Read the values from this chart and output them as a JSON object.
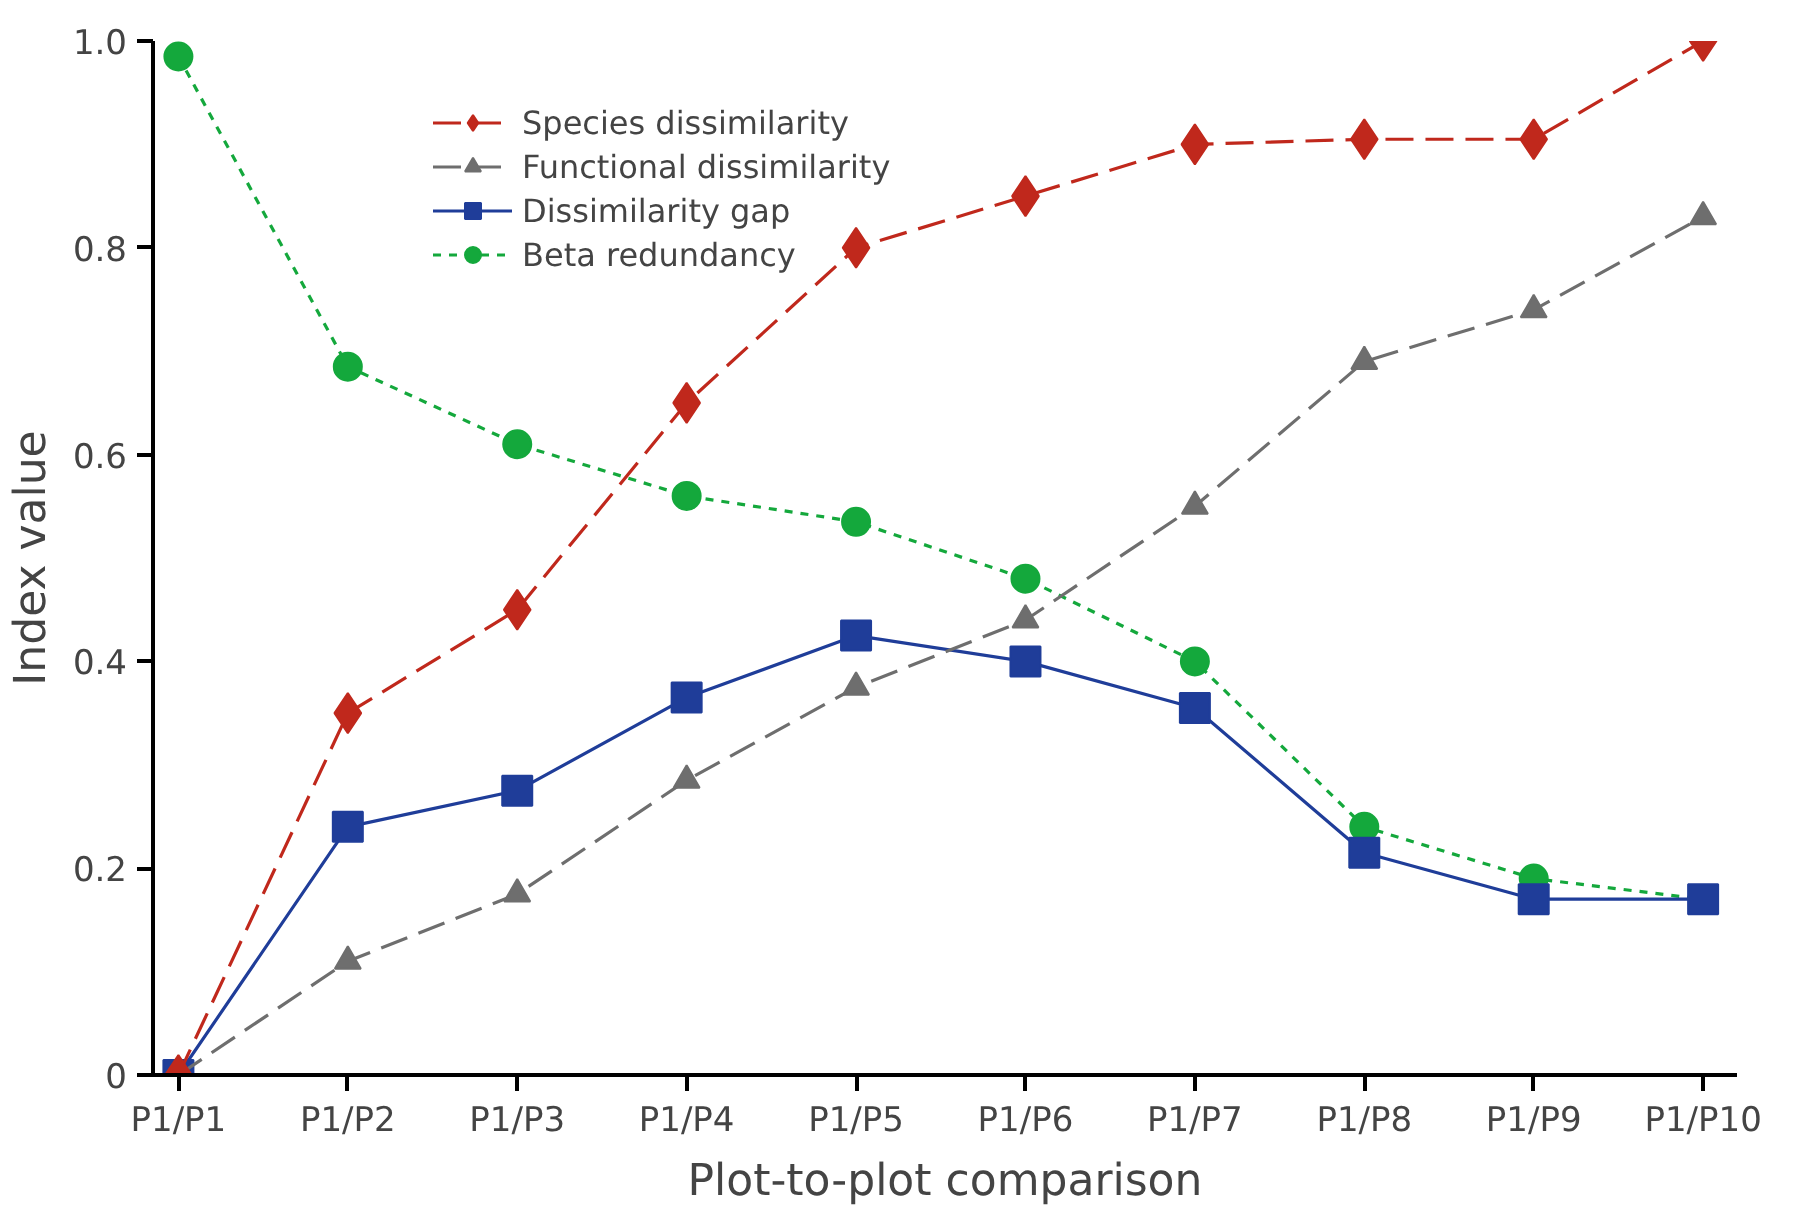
{
  "chart_data": {
    "type": "line",
    "xlabel": "Plot-to-plot comparison",
    "ylabel": "Index value",
    "categories": [
      "P1/P1",
      "P1/P2",
      "P1/P3",
      "P1/P4",
      "P1/P5",
      "P1/P6",
      "P1/P7",
      "P1/P8",
      "P1/P9",
      "P1/P10"
    ],
    "ylim": [
      0,
      1
    ],
    "yticks": [
      0,
      0.2,
      0.4,
      0.6,
      0.8,
      {
        "value": 1,
        "label": "1.0"
      }
    ],
    "grid": false,
    "legend": "top left",
    "series": [
      {
        "name": "Species dissimilarity",
        "color": "#c0281c",
        "marker": "diamond",
        "line_style": "dashed",
        "values": [
          0,
          0.35,
          0.45,
          0.65,
          0.8,
          0.85,
          0.9,
          0.905,
          0.905,
          1.0
        ]
      },
      {
        "name": "Functional dissimilarity",
        "color": "#6e6e6e",
        "marker": "triangle",
        "line_style": "dashed",
        "values": [
          0,
          0.11,
          0.175,
          0.285,
          0.375,
          0.44,
          0.55,
          0.69,
          0.74,
          0.83
        ]
      },
      {
        "name": "Dissimilarity gap",
        "color": "#1f3d99",
        "marker": "square",
        "line_style": "solid",
        "values": [
          0,
          0.24,
          0.275,
          0.365,
          0.425,
          0.4,
          0.355,
          0.215,
          0.17,
          0.17
        ]
      },
      {
        "name": "Beta redundancy",
        "color": "#14a83c",
        "marker": "circle",
        "line_style": "dotted",
        "values": [
          0.985,
          0.685,
          0.61,
          0.56,
          0.535,
          0.48,
          0.4,
          0.24,
          0.19,
          0.17
        ]
      }
    ]
  }
}
